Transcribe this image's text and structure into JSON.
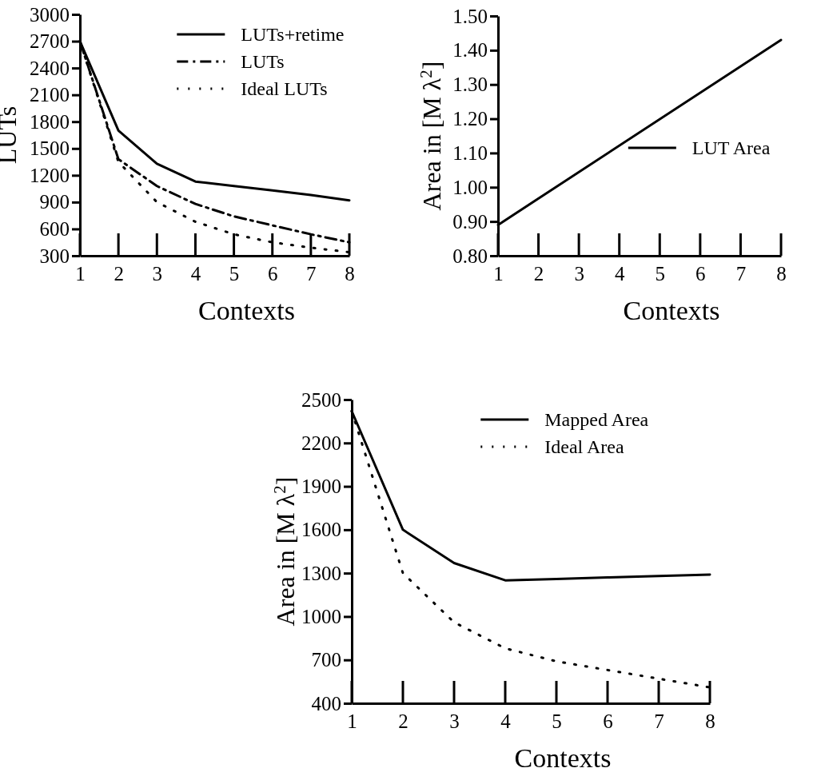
{
  "chart_data": [
    {
      "type": "line",
      "xlabel": "Contexts",
      "ylabel": "LUTs",
      "x": [
        1,
        2,
        3,
        4,
        5,
        6,
        7,
        8
      ],
      "xlim": [
        1,
        8
      ],
      "xticks": [
        1,
        2,
        3,
        4,
        5,
        6,
        7,
        8
      ],
      "ylim": [
        300,
        3000
      ],
      "yticks": [
        300,
        600,
        900,
        1200,
        1500,
        1800,
        2100,
        2400,
        2700,
        3000
      ],
      "legend": "top right",
      "series": [
        {
          "name": "LUTs+retime",
          "color": "#000000",
          "line_style": "solid",
          "values": [
            2700,
            1700,
            1330,
            1130,
            1080,
            1030,
            980,
            920
          ]
        },
        {
          "name": "LUTs",
          "color": "#000000",
          "line_style": "dashdot",
          "values": [
            2700,
            1380,
            1080,
            880,
            740,
            640,
            540,
            450
          ]
        },
        {
          "name": "Ideal LUTs",
          "color": "#000000",
          "line_style": "dotted",
          "values": [
            2700,
            1350,
            900,
            680,
            540,
            450,
            390,
            340
          ]
        }
      ]
    },
    {
      "type": "line",
      "xlabel": "Contexts",
      "ylabel": "Area in [M λ$^{2}$]",
      "x": [
        1,
        8
      ],
      "xlim": [
        1,
        8
      ],
      "xticks": [
        1,
        2,
        3,
        4,
        5,
        6,
        7,
        8
      ],
      "ylim": [
        0.8,
        1.5
      ],
      "yticks": [
        {
          "value": 0.8,
          "label": "0.80"
        },
        {
          "value": 0.9,
          "label": "0.90"
        },
        {
          "value": 1.0,
          "label": "1.00"
        },
        {
          "value": 1.1,
          "label": "1.10"
        },
        {
          "value": 1.2,
          "label": "1.20"
        },
        {
          "value": 1.3,
          "label": "1.30"
        },
        {
          "value": 1.4,
          "label": "1.40"
        },
        {
          "value": 1.5,
          "label": "1.50"
        }
      ],
      "legend": "right",
      "series": [
        {
          "name": "LUT Area",
          "color": "#000000",
          "line_style": "solid",
          "values": [
            0.89,
            1.43
          ]
        }
      ]
    },
    {
      "type": "line",
      "xlabel": "Contexts",
      "ylabel": "Area in [M λ$^{2}$]",
      "x": [
        1,
        2,
        3,
        4,
        5,
        6,
        7,
        8
      ],
      "xlim": [
        1,
        8
      ],
      "xticks": [
        1,
        2,
        3,
        4,
        5,
        6,
        7,
        8
      ],
      "ylim": [
        400,
        2500
      ],
      "yticks": [
        400,
        700,
        1000,
        1300,
        1600,
        1900,
        2200,
        2500
      ],
      "legend": "top right",
      "series": [
        {
          "name": "Mapped Area",
          "color": "#000000",
          "line_style": "solid",
          "values": [
            2420,
            1600,
            1370,
            1250,
            1260,
            1270,
            1280,
            1290
          ]
        },
        {
          "name": "Ideal Area",
          "color": "#000000",
          "line_style": "dotted",
          "values": [
            2420,
            1300,
            960,
            780,
            690,
            630,
            570,
            510
          ]
        }
      ]
    }
  ]
}
